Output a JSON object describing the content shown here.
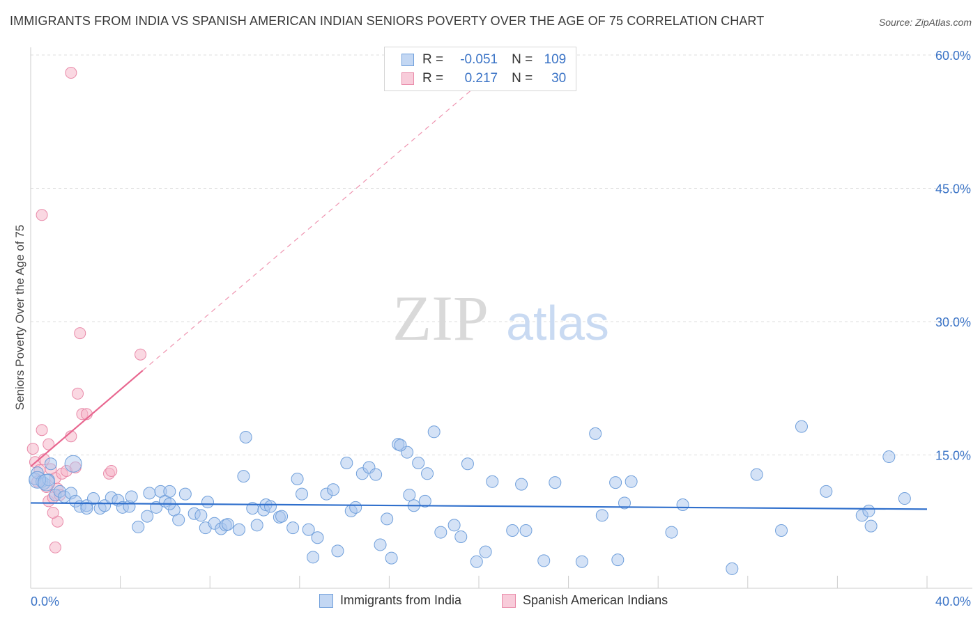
{
  "header": {
    "title": "IMMIGRANTS FROM INDIA VS SPANISH AMERICAN INDIAN SENIORS POVERTY OVER THE AGE OF 75 CORRELATION CHART",
    "source": "Source: ZipAtlas.com"
  },
  "watermark": {
    "zip": "ZIP",
    "atlas": "atlas"
  },
  "legend": {
    "r_label": "R =",
    "n_label": "N =",
    "series1": {
      "r": "-0.051",
      "n": "109"
    },
    "series2": {
      "r": "0.217",
      "n": "30"
    }
  },
  "colors": {
    "blue_fill": "#a9c6ee",
    "blue_stroke": "#6f9fdb",
    "blue_line": "#2f6fcc",
    "pink_fill": "#f5b8cb",
    "pink_stroke": "#e98aa9",
    "pink_line": "#e8668f",
    "axis_text": "#3a73c6",
    "grid": "#dddddd"
  },
  "chart_data": {
    "type": "scatter",
    "title": "IMMIGRANTS FROM INDIA VS SPANISH AMERICAN INDIAN SENIORS POVERTY OVER THE AGE OF 75 CORRELATION CHART",
    "xlabel": "",
    "ylabel": "Seniors Poverty Over the Age of 75",
    "xlim": [
      0,
      40
    ],
    "ylim": [
      0,
      60
    ],
    "x_tick_labels": [
      "0.0%",
      "40.0%"
    ],
    "y_ticks": [
      15,
      30,
      45,
      60
    ],
    "y_tick_labels": [
      "15.0%",
      "30.0%",
      "45.0%",
      "60.0%"
    ],
    "grid": true,
    "legend_position": "top-center",
    "series": [
      {
        "name": "Immigrants from India",
        "color": "#a9c6ee",
        "R": -0.051,
        "N": 109,
        "trend": {
          "x": [
            0,
            40
          ],
          "y": [
            9.6,
            8.9
          ],
          "dashed_extension": false
        },
        "points": [
          [
            0.2,
            12.3
          ],
          [
            0.3,
            13.0
          ],
          [
            0.5,
            12.0
          ],
          [
            0.6,
            11.8
          ],
          [
            0.8,
            12.2
          ],
          [
            0.9,
            14.0
          ],
          [
            1.1,
            10.5
          ],
          [
            1.3,
            10.9
          ],
          [
            1.5,
            10.3
          ],
          [
            1.8,
            10.7
          ],
          [
            2.0,
            9.8
          ],
          [
            2.2,
            9.2
          ],
          [
            2.5,
            9.3
          ],
          [
            2.8,
            10.1
          ],
          [
            3.1,
            9.0
          ],
          [
            3.3,
            9.3
          ],
          [
            3.6,
            10.2
          ],
          [
            3.9,
            9.9
          ],
          [
            4.1,
            9.1
          ],
          [
            4.4,
            9.2
          ],
          [
            4.8,
            6.9
          ],
          [
            5.2,
            8.1
          ],
          [
            5.3,
            10.7
          ],
          [
            5.6,
            9.1
          ],
          [
            5.8,
            10.9
          ],
          [
            6.0,
            9.8
          ],
          [
            6.2,
            10.9
          ],
          [
            6.4,
            8.8
          ],
          [
            6.6,
            7.7
          ],
          [
            6.9,
            10.6
          ],
          [
            7.3,
            8.4
          ],
          [
            7.6,
            8.2
          ],
          [
            7.8,
            6.8
          ],
          [
            7.9,
            9.7
          ],
          [
            8.2,
            7.3
          ],
          [
            8.5,
            6.7
          ],
          [
            8.7,
            7.1
          ],
          [
            8.8,
            7.2
          ],
          [
            9.3,
            6.6
          ],
          [
            9.5,
            12.6
          ],
          [
            9.6,
            17.0
          ],
          [
            9.9,
            9.0
          ],
          [
            10.1,
            7.1
          ],
          [
            10.4,
            8.8
          ],
          [
            10.5,
            9.4
          ],
          [
            10.7,
            9.2
          ],
          [
            11.1,
            8.0
          ],
          [
            11.7,
            6.8
          ],
          [
            11.9,
            12.3
          ],
          [
            12.1,
            10.6
          ],
          [
            12.4,
            6.6
          ],
          [
            12.6,
            3.5
          ],
          [
            12.8,
            5.7
          ],
          [
            13.2,
            10.6
          ],
          [
            13.5,
            11.1
          ],
          [
            13.7,
            4.2
          ],
          [
            14.1,
            14.1
          ],
          [
            14.3,
            8.7
          ],
          [
            14.5,
            9.1
          ],
          [
            14.8,
            12.9
          ],
          [
            15.1,
            13.6
          ],
          [
            15.4,
            12.8
          ],
          [
            15.6,
            4.9
          ],
          [
            15.9,
            7.8
          ],
          [
            16.1,
            3.4
          ],
          [
            16.4,
            16.2
          ],
          [
            16.8,
            15.3
          ],
          [
            16.9,
            10.5
          ],
          [
            17.1,
            9.3
          ],
          [
            17.3,
            14.1
          ],
          [
            17.6,
            9.8
          ],
          [
            17.7,
            12.9
          ],
          [
            18.0,
            17.6
          ],
          [
            18.3,
            6.3
          ],
          [
            18.9,
            7.1
          ],
          [
            19.2,
            5.8
          ],
          [
            19.5,
            14.0
          ],
          [
            19.9,
            3.0
          ],
          [
            20.3,
            4.1
          ],
          [
            20.6,
            12.0
          ],
          [
            21.5,
            6.5
          ],
          [
            21.9,
            11.7
          ],
          [
            22.1,
            6.5
          ],
          [
            22.9,
            3.1
          ],
          [
            23.4,
            11.9
          ],
          [
            24.6,
            3.0
          ],
          [
            25.2,
            17.4
          ],
          [
            25.5,
            8.2
          ],
          [
            26.1,
            11.9
          ],
          [
            26.2,
            3.2
          ],
          [
            26.5,
            9.6
          ],
          [
            26.8,
            12.0
          ],
          [
            28.6,
            6.3
          ],
          [
            29.1,
            9.4
          ],
          [
            31.3,
            2.2
          ],
          [
            32.4,
            12.8
          ],
          [
            33.5,
            6.5
          ],
          [
            34.4,
            18.2
          ],
          [
            35.5,
            10.9
          ],
          [
            37.1,
            8.2
          ],
          [
            37.4,
            8.7
          ],
          [
            37.5,
            7.0
          ],
          [
            38.3,
            14.8
          ],
          [
            39.0,
            10.1
          ],
          [
            2.5,
            9.0
          ],
          [
            4.5,
            10.3
          ],
          [
            6.2,
            9.5
          ],
          [
            11.2,
            8.1
          ],
          [
            16.5,
            16.1
          ]
        ]
      },
      {
        "name": "Spanish American Indians",
        "color": "#f5b8cb",
        "R": 0.217,
        "N": 30,
        "trend": {
          "x": [
            0,
            5.0
          ],
          "y": [
            13.7,
            24.5
          ],
          "dashed_extension": true,
          "dashed_to": [
            21.5,
            60.0
          ]
        },
        "points": [
          [
            0.1,
            15.7
          ],
          [
            0.2,
            14.2
          ],
          [
            0.3,
            12.0
          ],
          [
            0.4,
            13.3
          ],
          [
            0.5,
            17.8
          ],
          [
            0.6,
            14.5
          ],
          [
            0.7,
            11.4
          ],
          [
            0.8,
            9.8
          ],
          [
            0.9,
            13.4
          ],
          [
            1.0,
            10.2
          ],
          [
            1.1,
            12.4
          ],
          [
            1.2,
            11.2
          ],
          [
            1.3,
            10.5
          ],
          [
            1.4,
            12.9
          ],
          [
            1.6,
            13.2
          ],
          [
            1.8,
            17.1
          ],
          [
            2.0,
            13.6
          ],
          [
            2.1,
            21.9
          ],
          [
            2.3,
            19.6
          ],
          [
            2.5,
            19.6
          ],
          [
            3.5,
            12.9
          ],
          [
            3.6,
            13.2
          ],
          [
            1.8,
            58.0
          ],
          [
            0.5,
            42.0
          ],
          [
            2.2,
            28.7
          ],
          [
            4.9,
            26.3
          ],
          [
            1.2,
            7.5
          ],
          [
            1.0,
            8.5
          ],
          [
            1.1,
            4.6
          ],
          [
            0.8,
            16.2
          ]
        ]
      }
    ]
  },
  "bottom_legend": {
    "series1_label": "Immigrants from India",
    "series2_label": "Spanish American Indians"
  }
}
